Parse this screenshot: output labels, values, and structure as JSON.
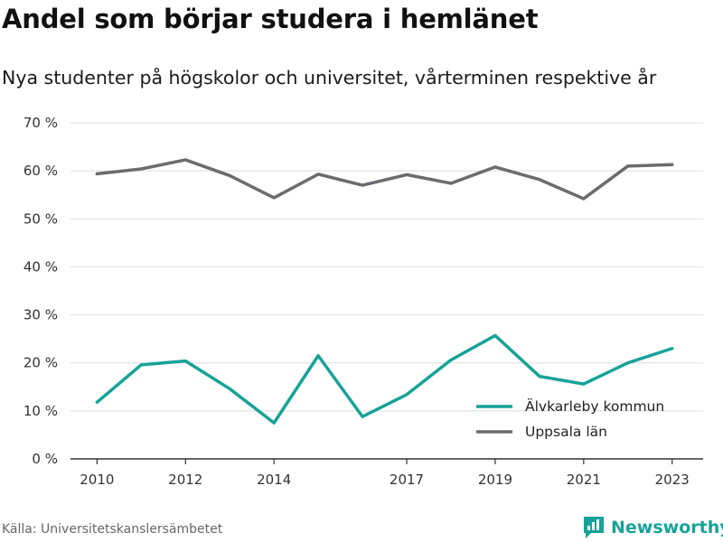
{
  "header": {
    "title": "Andel som börjar studera i hemlänet",
    "subtitle": "Nya studenter på högskolor och universitet, vårterminen respektive år"
  },
  "footer": {
    "source": "Källa: Universitetskanslersämbetet",
    "brand": "Newsworthy"
  },
  "colors": {
    "alvkarleby": "#17a398",
    "uppsala": "#6b6b70",
    "grid": "#dddddd",
    "axis": "#333333"
  },
  "chart_data": {
    "type": "line",
    "title": "Andel som börjar studera i hemlänet",
    "subtitle": "Nya studenter på högskolor och universitet, vårterminen respektive år",
    "x": [
      2010,
      2011,
      2012,
      2013,
      2014,
      2015,
      2016,
      2017,
      2018,
      2019,
      2020,
      2021,
      2022,
      2023
    ],
    "x_tick_labels": [
      "2010",
      "2012",
      "2014",
      "2017",
      "2019",
      "2021",
      "2023"
    ],
    "y_tick_labels": [
      "0 %",
      "10 %",
      "20 %",
      "30 %",
      "40 %",
      "50 %",
      "60 %",
      "70 %"
    ],
    "ylim": [
      0,
      70
    ],
    "y_unit": "%",
    "grid": true,
    "legend_position": "bottom-right",
    "series": [
      {
        "name": "Älvkarleby kommun",
        "color": "#17a398",
        "values": [
          11.8,
          19.6,
          20.4,
          14.6,
          7.5,
          21.5,
          8.8,
          13.4,
          20.6,
          25.7,
          17.2,
          15.6,
          20.0,
          23.0
        ]
      },
      {
        "name": "Uppsala län",
        "color": "#6b6b70",
        "values": [
          59.4,
          60.4,
          62.3,
          59.0,
          54.4,
          59.3,
          57.0,
          59.2,
          57.4,
          60.8,
          58.2,
          54.2,
          61.0,
          61.3
        ]
      }
    ]
  }
}
